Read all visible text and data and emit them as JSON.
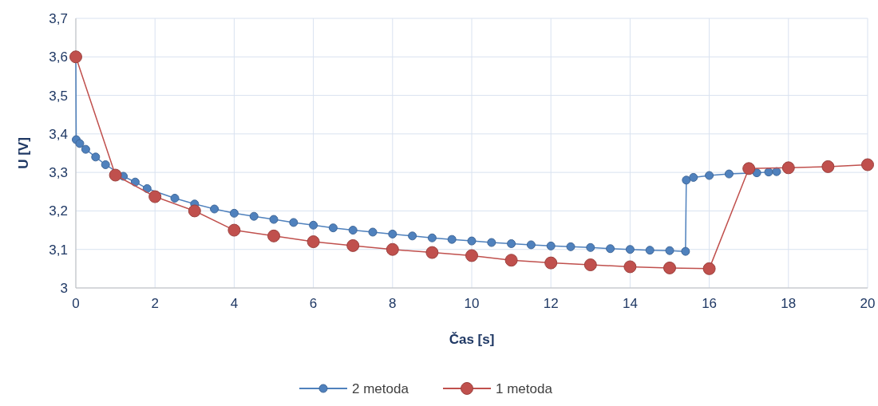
{
  "chart_data": {
    "type": "line",
    "xlabel": "Čas [s]",
    "ylabel": "U [V]",
    "xlim": [
      0,
      20
    ],
    "xticks": [
      0,
      2,
      4,
      6,
      8,
      10,
      12,
      14,
      16,
      18,
      20
    ],
    "ylim": [
      3,
      3.7
    ],
    "yticks": [
      3,
      {
        "value": 3.1,
        "label": "3,1"
      },
      {
        "value": 3.2,
        "label": "3,2"
      },
      {
        "value": 3.3,
        "label": "3,3"
      },
      {
        "value": 3.4,
        "label": "3,4"
      },
      {
        "value": 3.5,
        "label": "3,5"
      },
      {
        "value": 3.6,
        "label": "3,6"
      },
      {
        "value": 3.7,
        "label": "3,7"
      }
    ],
    "grid": true,
    "legend": "bottom",
    "marker": "circle",
    "line_style": "solid",
    "series": [
      {
        "name": "2 metoda",
        "color": "#4f81bd",
        "x": [
          0,
          0.01,
          0.1,
          0.25,
          0.5,
          0.75,
          1.2,
          1.5,
          1.8,
          2.5,
          3,
          3.5,
          4,
          4.5,
          5,
          5.5,
          6,
          6.5,
          7,
          7.5,
          8,
          8.5,
          9,
          9.5,
          10,
          10.5,
          11,
          11.5,
          12,
          12.5,
          13,
          13.5,
          14,
          14.5,
          15,
          15.4,
          15.42,
          15.6,
          16,
          16.5,
          17.2,
          17.5,
          17.7
        ],
        "values": [
          3.6,
          3.385,
          3.375,
          3.36,
          3.34,
          3.32,
          3.29,
          3.275,
          3.258,
          3.233,
          3.218,
          3.205,
          3.194,
          3.186,
          3.178,
          3.17,
          3.163,
          3.156,
          3.15,
          3.145,
          3.14,
          3.135,
          3.13,
          3.126,
          3.122,
          3.118,
          3.115,
          3.112,
          3.109,
          3.107,
          3.105,
          3.102,
          3.1,
          3.098,
          3.097,
          3.095,
          3.28,
          3.287,
          3.292,
          3.296,
          3.299,
          3.301,
          3.302
        ]
      },
      {
        "name": "1 metoda",
        "color": "#c0504d",
        "x": [
          0,
          1,
          2,
          3,
          4,
          5,
          6,
          7,
          8,
          9,
          10,
          11,
          12,
          13,
          14,
          15,
          16,
          17,
          18,
          19,
          20
        ],
        "values": [
          3.6,
          3.293,
          3.237,
          3.2,
          3.15,
          3.135,
          3.12,
          3.11,
          3.1,
          3.092,
          3.084,
          3.072,
          3.065,
          3.06,
          3.055,
          3.052,
          3.05,
          3.31,
          3.312,
          3.315,
          3.32
        ]
      }
    ]
  }
}
